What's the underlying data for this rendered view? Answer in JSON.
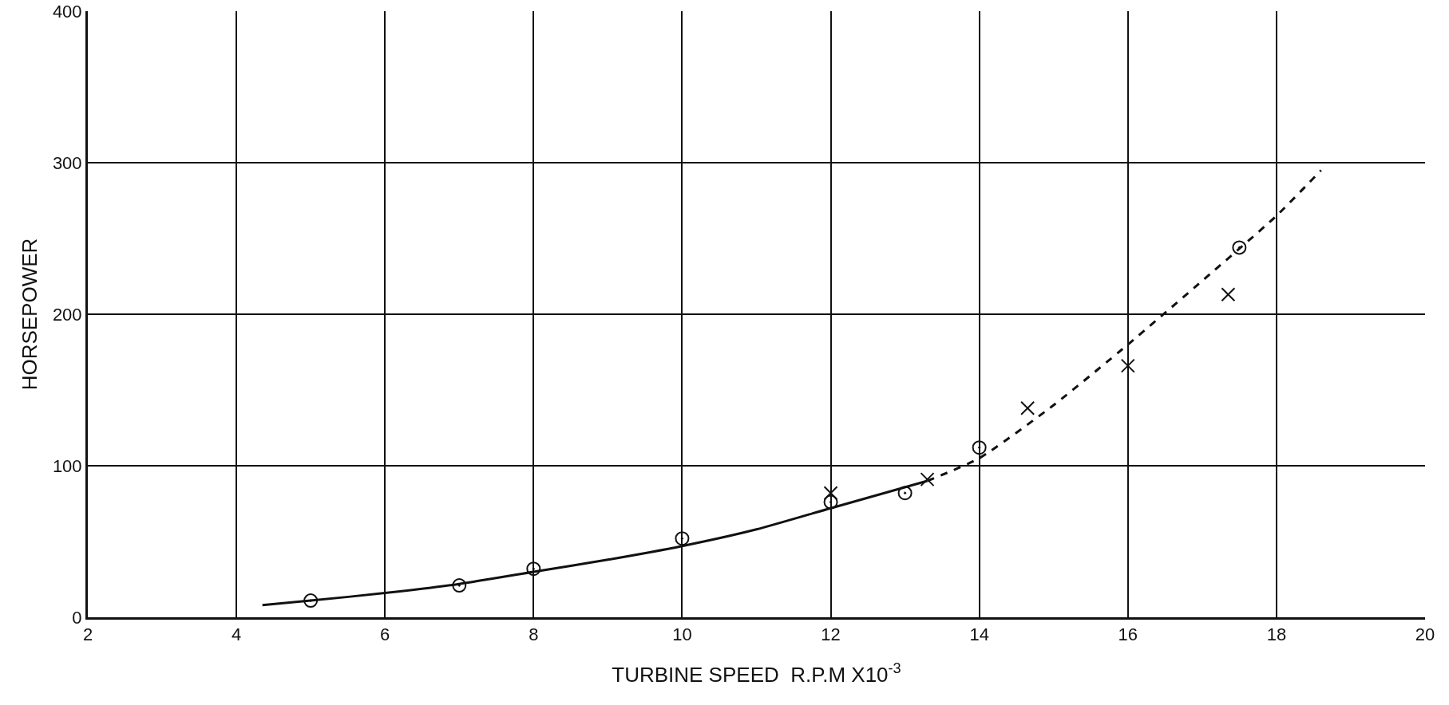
{
  "chart_data": {
    "type": "line",
    "xlabel": "TURBINE SPEED  R.P.M X10$^{-3}$",
    "ylabel": "HORSEPOWER",
    "xlim": [
      2,
      20
    ],
    "xticks": [
      2,
      4,
      6,
      8,
      10,
      12,
      14,
      16,
      18,
      20
    ],
    "ylim": [
      0,
      400
    ],
    "yticks": [
      0,
      100,
      200,
      300,
      400
    ],
    "grid": true,
    "series": [
      {
        "type": "scatter",
        "marker": "circle",
        "color": "#111111",
        "x": [
          5,
          7,
          8,
          10,
          12,
          13,
          14,
          17.5
        ],
        "values": [
          11,
          21,
          32,
          52,
          76,
          82,
          112,
          244
        ]
      },
      {
        "type": "scatter",
        "marker": "cross",
        "color": "#111111",
        "x": [
          12,
          13.3,
          14.65,
          16,
          17.35
        ],
        "values": [
          82,
          91,
          138,
          166,
          213
        ]
      },
      {
        "line_style": "solid",
        "color": "#111111",
        "x": [
          4.35,
          5,
          6,
          7,
          8,
          9,
          10,
          11,
          12,
          13.3
        ],
        "values": [
          8,
          11,
          16,
          22,
          30,
          38,
          47,
          58,
          72,
          90
        ]
      },
      {
        "line_style": "dashed",
        "color": "#111111",
        "x": [
          13.3,
          14,
          15,
          16,
          17,
          18,
          18.6
        ],
        "values": [
          90,
          105,
          140,
          180,
          222,
          265,
          295
        ]
      }
    ]
  }
}
